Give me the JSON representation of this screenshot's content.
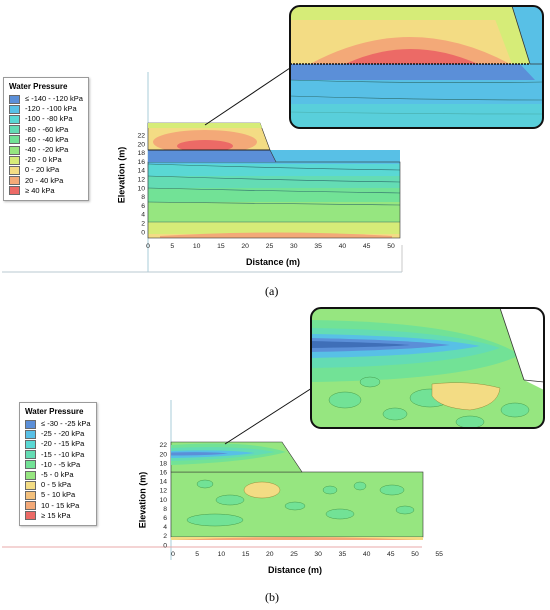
{
  "panels": [
    {
      "caption": "(a)",
      "legend": {
        "title": "Water Pressure",
        "items": [
          {
            "label": "≤ -140 - -120 kPa",
            "color": "#5b8fd8"
          },
          {
            "label": "-120 - -100 kPa",
            "color": "#58c0e6"
          },
          {
            "label": "-100 - -80 kPa",
            "color": "#5ad8d4"
          },
          {
            "label": "-80 - -60 kPa",
            "color": "#64dcb4"
          },
          {
            "label": "-60 - -40 kPa",
            "color": "#72e296"
          },
          {
            "label": "-40 - -20 kPa",
            "color": "#96e680"
          },
          {
            "label": "-20 - 0 kPa",
            "color": "#d6ec78"
          },
          {
            "label": "0 - 20 kPa",
            "color": "#f3dc84"
          },
          {
            "label": "20 - 40 kPa",
            "color": "#f3a978"
          },
          {
            "label": "≥ 40 kPa",
            "color": "#ec6a66"
          }
        ]
      },
      "xlabel": "Distance  (m)",
      "ylabel": "Elevation (m)",
      "xticks": [
        "0",
        "5",
        "10",
        "15",
        "20",
        "25",
        "30",
        "35",
        "40",
        "45",
        "50"
      ],
      "yticks": [
        "0",
        "2",
        "4",
        "6",
        "8",
        "10",
        "12",
        "14",
        "16",
        "18",
        "20",
        "22"
      ]
    },
    {
      "caption": "(b)",
      "legend": {
        "title": "Water Pressure",
        "items": [
          {
            "label": "≤ -30 - -25 kPa",
            "color": "#5b8fd8"
          },
          {
            "label": "-25 - -20 kPa",
            "color": "#58c0e6"
          },
          {
            "label": "-20 - -15 kPa",
            "color": "#5ad8d4"
          },
          {
            "label": "-15 - -10 kPa",
            "color": "#64dcb4"
          },
          {
            "label": "-10 - -5 kPa",
            "color": "#72e296"
          },
          {
            "label": "-5 - 0 kPa",
            "color": "#96e680"
          },
          {
            "label": "0 - 5 kPa",
            "color": "#f3dc84"
          },
          {
            "label": "5 - 10 kPa",
            "color": "#f3c07c"
          },
          {
            "label": "10 - 15 kPa",
            "color": "#f3a978"
          },
          {
            "label": "≥ 15 kPa",
            "color": "#ec6a66"
          }
        ]
      },
      "xlabel": "Distance (m)",
      "ylabel": "Elevation (m)",
      "xticks": [
        "0",
        "5",
        "10",
        "15",
        "20",
        "25",
        "30",
        "35",
        "40",
        "45",
        "50",
        "55"
      ],
      "yticks": [
        "0",
        "2",
        "4",
        "6",
        "8",
        "10",
        "12",
        "14",
        "16",
        "18",
        "20",
        "22"
      ]
    }
  ]
}
